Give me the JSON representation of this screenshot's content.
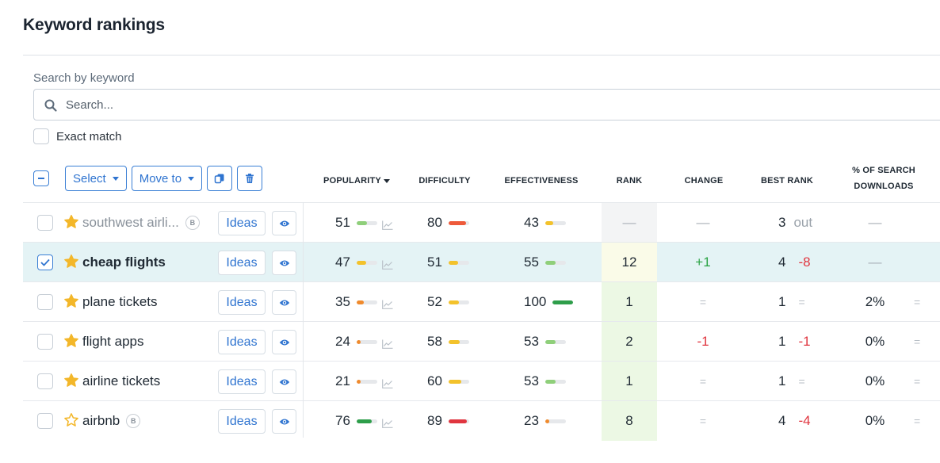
{
  "page": {
    "title": "Keyword rankings"
  },
  "search": {
    "label": "Search by keyword",
    "placeholder": "Search...",
    "exact_match_label": "Exact match"
  },
  "toolbar": {
    "select_label": "Select",
    "move_to_label": "Move to"
  },
  "columns": {
    "popularity": "POPULARITY",
    "difficulty": "DIFFICULTY",
    "effectiveness": "EFFECTIVENESS",
    "rank": "RANK",
    "change": "CHANGE",
    "best_rank": "BEST RANK",
    "search_downloads_1": "% OF SEARCH",
    "search_downloads_2": "DOWNLOADS"
  },
  "colors": {
    "accent": "#2f74d0",
    "green": "#2aa344",
    "red": "#e0353f",
    "yellow": "#f3c22b",
    "orange": "#f08a2c",
    "star": "#f3b72a"
  },
  "ideas_label": "Ideas",
  "rows": [
    {
      "keyword": "southwest airli...",
      "starred": true,
      "muted": true,
      "bold": false,
      "badge": "B",
      "checked": false,
      "selected": false,
      "popularity": "51",
      "pop_level": 0.5,
      "pop_color": "#8fcf7a",
      "difficulty": "80",
      "diff_level": 0.85,
      "diff_color": "#ee5a3a",
      "effectiveness": "43",
      "eff_level": 0.4,
      "eff_color": "#f3c22b",
      "rank": "—",
      "rank_bg": "#f3f4f5",
      "change": "—",
      "change_type": "dash",
      "best_rank": "3",
      "best_extra": "out",
      "best_extra_type": "out",
      "downloads": "—",
      "downloads_eq": ""
    },
    {
      "keyword": "cheap flights",
      "starred": true,
      "muted": false,
      "bold": true,
      "badge": "",
      "checked": true,
      "selected": true,
      "popularity": "47",
      "pop_level": 0.45,
      "pop_color": "#f3c22b",
      "difficulty": "51",
      "diff_level": 0.45,
      "diff_color": "#f3c22b",
      "effectiveness": "55",
      "eff_level": 0.5,
      "eff_color": "#8fcf7a",
      "rank": "12",
      "rank_bg": "#fafbe8",
      "change": "+1",
      "change_type": "pos",
      "best_rank": "4",
      "best_extra": "-8",
      "best_extra_type": "neg",
      "downloads": "—",
      "downloads_eq": ""
    },
    {
      "keyword": "plane tickets",
      "starred": true,
      "muted": false,
      "bold": false,
      "badge": "",
      "checked": false,
      "selected": false,
      "popularity": "35",
      "pop_level": 0.35,
      "pop_color": "#f08a2c",
      "difficulty": "52",
      "diff_level": 0.5,
      "diff_color": "#f3c22b",
      "effectiveness": "100",
      "eff_level": 1.0,
      "eff_color": "#2e9e4a",
      "rank": "1",
      "rank_bg": "#ecf8e4",
      "change": "=",
      "change_type": "eq",
      "best_rank": "1",
      "best_extra": "=",
      "best_extra_type": "eq",
      "downloads": "2%",
      "downloads_eq": "="
    },
    {
      "keyword": "flight apps",
      "starred": true,
      "muted": false,
      "bold": false,
      "badge": "",
      "checked": false,
      "selected": false,
      "popularity": "24",
      "pop_level": 0.2,
      "pop_color": "#f08a2c",
      "difficulty": "58",
      "diff_level": 0.55,
      "diff_color": "#f3c22b",
      "effectiveness": "53",
      "eff_level": 0.5,
      "eff_color": "#8fcf7a",
      "rank": "2",
      "rank_bg": "#ecf8e4",
      "change": "-1",
      "change_type": "neg",
      "best_rank": "1",
      "best_extra": "-1",
      "best_extra_type": "neg",
      "downloads": "0%",
      "downloads_eq": "="
    },
    {
      "keyword": "airline tickets",
      "starred": true,
      "muted": false,
      "bold": false,
      "badge": "",
      "checked": false,
      "selected": false,
      "popularity": "21",
      "pop_level": 0.2,
      "pop_color": "#f08a2c",
      "difficulty": "60",
      "diff_level": 0.6,
      "diff_color": "#f3c22b",
      "effectiveness": "53",
      "eff_level": 0.5,
      "eff_color": "#8fcf7a",
      "rank": "1",
      "rank_bg": "#ecf8e4",
      "change": "=",
      "change_type": "eq",
      "best_rank": "1",
      "best_extra": "=",
      "best_extra_type": "eq",
      "downloads": "0%",
      "downloads_eq": "="
    },
    {
      "keyword": "airbnb",
      "starred": false,
      "muted": false,
      "bold": false,
      "badge": "B",
      "checked": false,
      "selected": false,
      "popularity": "76",
      "pop_level": 0.75,
      "pop_color": "#2e9e4a",
      "difficulty": "89",
      "diff_level": 0.9,
      "diff_color": "#e0353f",
      "effectiveness": "23",
      "eff_level": 0.2,
      "eff_color": "#f08a2c",
      "rank": "8",
      "rank_bg": "#ecf8e4",
      "change": "=",
      "change_type": "eq",
      "best_rank": "4",
      "best_extra": "-4",
      "best_extra_type": "neg",
      "downloads": "0%",
      "downloads_eq": "="
    }
  ]
}
